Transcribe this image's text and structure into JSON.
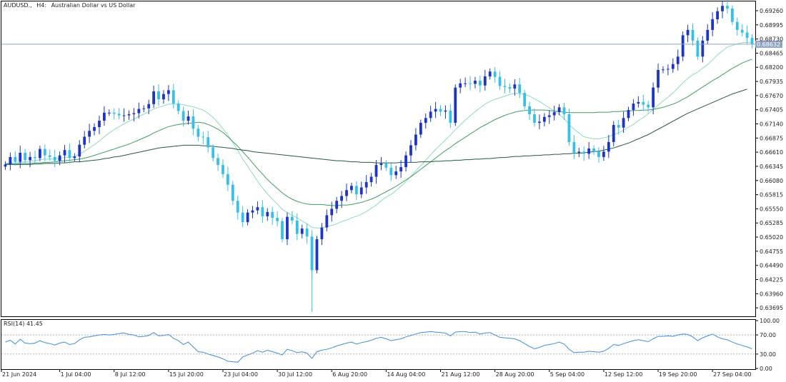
{
  "chart_title": {
    "symbol": "AUDUSD.,",
    "timeframe": "H4:",
    "description": "Australian Dollar vs US Dollar"
  },
  "current_price": {
    "label": "0.68632",
    "value": 0.68632,
    "color": "#8fa4c2"
  },
  "colors": {
    "bull": "#1e34c8",
    "bear": "#35c0e8",
    "ma_fast": "#8fd8c4",
    "ma_mid": "#3f9f5e",
    "ma_slow": "#245c3c",
    "rsi_line": "#3c8fe0",
    "grid_dash": "#b0b0b0",
    "frame": "#000000"
  },
  "chart_data": {
    "type": "line",
    "price_axis": {
      "ylim": [
        0.6355,
        0.6942
      ],
      "ticks": [
        "0.69260",
        "0.68995",
        "0.68730",
        "0.68465",
        "0.68200",
        "0.67935",
        "0.67670",
        "0.67405",
        "0.67140",
        "0.66875",
        "0.66610",
        "0.66345",
        "0.66080",
        "0.65815",
        "0.65550",
        "0.65285",
        "0.65020",
        "0.64755",
        "0.64490",
        "0.64225",
        "0.63960",
        "0.63695"
      ]
    },
    "time_axis": {
      "labels": [
        "21 Jun 2024",
        "1 Jul 04:00",
        "8 Jul 12:00",
        "15 Jul 20:00",
        "23 Jul 04:00",
        "30 Jul 12:00",
        "6 Aug 20:00",
        "14 Aug 04:00",
        "21 Aug 12:00",
        "28 Aug 20:00",
        "5 Sep 04:00",
        "12 Sep 12:00",
        "19 Sep 20:00",
        "27 Sep 04:00"
      ],
      "label_bars": [
        0,
        11,
        22,
        33,
        44,
        55,
        66,
        77,
        88,
        99,
        110,
        121,
        132,
        143
      ]
    },
    "price_series": {
      "name": "AUDUSD., H4",
      "close": [
        0.6638,
        0.6652,
        0.6643,
        0.666,
        0.6646,
        0.6652,
        0.665,
        0.6667,
        0.6655,
        0.6652,
        0.6645,
        0.6655,
        0.6665,
        0.665,
        0.6653,
        0.6675,
        0.669,
        0.6701,
        0.6708,
        0.672,
        0.6735,
        0.6735,
        0.6733,
        0.673,
        0.673,
        0.6732,
        0.6734,
        0.6742,
        0.6743,
        0.6751,
        0.6775,
        0.676,
        0.677,
        0.6777,
        0.6752,
        0.6738,
        0.672,
        0.6728,
        0.6705,
        0.669,
        0.6689,
        0.667,
        0.665,
        0.6637,
        0.662,
        0.66,
        0.657,
        0.6548,
        0.653,
        0.6548,
        0.6552,
        0.6558,
        0.6541,
        0.6549,
        0.6538,
        0.6532,
        0.6498,
        0.654,
        0.6533,
        0.6508,
        0.6518,
        0.6503,
        0.644,
        0.6498,
        0.652,
        0.6543,
        0.6555,
        0.657,
        0.6579,
        0.659,
        0.6598,
        0.6582,
        0.6595,
        0.6605,
        0.6615,
        0.6637,
        0.664,
        0.6632,
        0.6618,
        0.6625,
        0.6633,
        0.6655,
        0.6674,
        0.6694,
        0.6716,
        0.6725,
        0.6737,
        0.6742,
        0.6737,
        0.6739,
        0.6716,
        0.6782,
        0.679,
        0.679,
        0.6789,
        0.6795,
        0.6786,
        0.6803,
        0.6812,
        0.6802,
        0.6785,
        0.6783,
        0.678,
        0.6788,
        0.6772,
        0.6747,
        0.6732,
        0.6716,
        0.6718,
        0.6727,
        0.673,
        0.6736,
        0.6745,
        0.6732,
        0.668,
        0.666,
        0.6662,
        0.6658,
        0.6668,
        0.6662,
        0.6652,
        0.6662,
        0.668,
        0.6712,
        0.6707,
        0.6725,
        0.674,
        0.6752,
        0.6755,
        0.675,
        0.6745,
        0.6782,
        0.6815,
        0.6816,
        0.6817,
        0.6826,
        0.684,
        0.688,
        0.689,
        0.687,
        0.684,
        0.687,
        0.689,
        0.691,
        0.6925,
        0.6935,
        0.693,
        0.6905,
        0.689,
        0.6885,
        0.6875,
        0.6863
      ]
    },
    "moving_averages": [
      {
        "values": [
          0.664,
          0.6641,
          0.6641,
          0.6642,
          0.6643,
          0.6644,
          0.6645,
          0.6647,
          0.6648,
          0.6648,
          0.6649,
          0.665,
          0.6651,
          0.6652,
          0.6653,
          0.6657,
          0.6663,
          0.6669,
          0.6675,
          0.6682,
          0.669,
          0.6697,
          0.6703,
          0.6709,
          0.6714,
          0.6719,
          0.6723,
          0.6728,
          0.6732,
          0.6737,
          0.6742,
          0.6745,
          0.6748,
          0.6751,
          0.6751,
          0.6751,
          0.675,
          0.6748,
          0.6746,
          0.6743,
          0.674,
          0.6734,
          0.6726,
          0.6716,
          0.6705,
          0.6693,
          0.6679,
          0.6664,
          0.6648,
          0.6635,
          0.6621,
          0.6607,
          0.6594,
          0.6583,
          0.6573,
          0.6564,
          0.6554,
          0.6548,
          0.6543,
          0.6538,
          0.6532,
          0.6527,
          0.652,
          0.6519,
          0.6519,
          0.6522,
          0.6524,
          0.6527,
          0.6531,
          0.6534,
          0.6538,
          0.6541,
          0.6545,
          0.655,
          0.6556,
          0.6562,
          0.657,
          0.6577,
          0.6582,
          0.6589,
          0.6597,
          0.6606,
          0.6616,
          0.6626,
          0.6636,
          0.6646,
          0.6656,
          0.6666,
          0.6675,
          0.6684,
          0.6693,
          0.6703,
          0.6712,
          0.6721,
          0.6729,
          0.6737,
          0.6744,
          0.6751,
          0.6756,
          0.676,
          0.6763,
          0.6766,
          0.6769,
          0.6771,
          0.6771,
          0.6769,
          0.6766,
          0.6761,
          0.6756,
          0.675,
          0.6744,
          0.6738,
          0.6732,
          0.6724,
          0.6713,
          0.6704,
          0.6697,
          0.669,
          0.6688,
          0.6686,
          0.6686,
          0.6688,
          0.669,
          0.6694,
          0.6697,
          0.6702,
          0.6708,
          0.6713,
          0.672,
          0.6726,
          0.6733,
          0.6741,
          0.6749,
          0.6757,
          0.6764,
          0.6772,
          0.6781,
          0.6791,
          0.6799,
          0.6806,
          0.6811,
          0.6818,
          0.6825,
          0.6834,
          0.6843,
          0.6851,
          0.6858,
          0.6861,
          0.6864,
          0.6866,
          0.6867,
          0.6866
        ]
      },
      {
        "values": [
          0.6639,
          0.6639,
          0.6639,
          0.664,
          0.664,
          0.664,
          0.6641,
          0.6641,
          0.6642,
          0.6642,
          0.6643,
          0.6644,
          0.6645,
          0.6646,
          0.6647,
          0.6648,
          0.665,
          0.6652,
          0.6655,
          0.6658,
          0.6661,
          0.6664,
          0.6667,
          0.667,
          0.6673,
          0.6676,
          0.668,
          0.6684,
          0.6688,
          0.6692,
          0.6697,
          0.6701,
          0.6705,
          0.6709,
          0.6711,
          0.6713,
          0.6714,
          0.6715,
          0.6716,
          0.6717,
          0.6716,
          0.6713,
          0.6709,
          0.6704,
          0.6698,
          0.669,
          0.6681,
          0.6672,
          0.6662,
          0.6652,
          0.6641,
          0.663,
          0.662,
          0.661,
          0.6601,
          0.6593,
          0.6585,
          0.6578,
          0.6573,
          0.6569,
          0.6566,
          0.6564,
          0.6563,
          0.6563,
          0.6563,
          0.6562,
          0.6561,
          0.6561,
          0.6562,
          0.6562,
          0.6563,
          0.6565,
          0.6567,
          0.657,
          0.6573,
          0.6577,
          0.6582,
          0.6587,
          0.6592,
          0.6597,
          0.6603,
          0.6609,
          0.6615,
          0.6622,
          0.6629,
          0.6636,
          0.6643,
          0.665,
          0.6657,
          0.6664,
          0.667,
          0.6677,
          0.6683,
          0.6689,
          0.6695,
          0.6701,
          0.6707,
          0.6712,
          0.6717,
          0.6722,
          0.6726,
          0.673,
          0.6733,
          0.6736,
          0.6738,
          0.6739,
          0.674,
          0.674,
          0.674,
          0.674,
          0.6739,
          0.6738,
          0.6737,
          0.6736,
          0.6735,
          0.6735,
          0.6735,
          0.6735,
          0.6735,
          0.6735,
          0.6736,
          0.6736,
          0.6736,
          0.6737,
          0.6737,
          0.6738,
          0.6738,
          0.6739,
          0.6739,
          0.674,
          0.674,
          0.6741,
          0.6743,
          0.6745,
          0.6748,
          0.6751,
          0.6755,
          0.676,
          0.6765,
          0.6771,
          0.6777,
          0.6783,
          0.6789,
          0.6795,
          0.68,
          0.6806,
          0.6812,
          0.6818,
          0.6823,
          0.6828,
          0.6832,
          0.6835
        ]
      },
      {
        "values": [
          0.6638,
          0.6638,
          0.6638,
          0.6638,
          0.6638,
          0.6638,
          0.6639,
          0.6639,
          0.664,
          0.664,
          0.664,
          0.6641,
          0.6641,
          0.6642,
          0.6643,
          0.6643,
          0.6644,
          0.6645,
          0.6646,
          0.6647,
          0.6649,
          0.665,
          0.6652,
          0.6653,
          0.6655,
          0.6657,
          0.6659,
          0.6661,
          0.6663,
          0.6665,
          0.6667,
          0.6669,
          0.667,
          0.6671,
          0.6672,
          0.6673,
          0.6674,
          0.6674,
          0.6674,
          0.6674,
          0.6673,
          0.6673,
          0.6672,
          0.6671,
          0.667,
          0.6669,
          0.6668,
          0.6666,
          0.6665,
          0.6664,
          0.6662,
          0.6661,
          0.666,
          0.6659,
          0.6658,
          0.6657,
          0.6656,
          0.6655,
          0.6654,
          0.6653,
          0.6652,
          0.6651,
          0.665,
          0.6649,
          0.6648,
          0.6647,
          0.6646,
          0.6645,
          0.6645,
          0.6644,
          0.6643,
          0.6643,
          0.6642,
          0.6642,
          0.6642,
          0.6641,
          0.6641,
          0.6641,
          0.6641,
          0.6641,
          0.6642,
          0.6642,
          0.6642,
          0.6642,
          0.6643,
          0.6643,
          0.6643,
          0.6644,
          0.6644,
          0.6645,
          0.6645,
          0.6646,
          0.6646,
          0.6647,
          0.6647,
          0.6648,
          0.6648,
          0.6649,
          0.6649,
          0.665,
          0.6651,
          0.6651,
          0.6652,
          0.6653,
          0.6653,
          0.6654,
          0.6654,
          0.6655,
          0.6655,
          0.6656,
          0.6656,
          0.6657,
          0.6657,
          0.6658,
          0.6658,
          0.6659,
          0.6659,
          0.666,
          0.6661,
          0.6662,
          0.6663,
          0.6665,
          0.6667,
          0.6669,
          0.6672,
          0.6675,
          0.6678,
          0.6682,
          0.6686,
          0.669,
          0.6694,
          0.6699,
          0.6704,
          0.6709,
          0.6714,
          0.6719,
          0.6724,
          0.6729,
          0.6734,
          0.6738,
          0.6742,
          0.6746,
          0.675,
          0.6754,
          0.6758,
          0.6762,
          0.6766,
          0.677,
          0.6773,
          0.6776,
          0.6779
        ]
      }
    ],
    "rsi": {
      "label": "RSI(14) 41.45",
      "ylim": [
        0,
        100
      ],
      "levels": [
        30,
        70
      ],
      "ticks": [
        "100.00",
        "70.00",
        "30.00",
        "0.00"
      ],
      "values": [
        55,
        59,
        51,
        61,
        53,
        52,
        53,
        58,
        54,
        52,
        49,
        53,
        55,
        50,
        52,
        60,
        65,
        66,
        68,
        70,
        71,
        70,
        71,
        73,
        74,
        71,
        70,
        66,
        67,
        69,
        75,
        68,
        69,
        71,
        63,
        58,
        50,
        55,
        45,
        35,
        34,
        30,
        27,
        24,
        20,
        15,
        14,
        13,
        24,
        28,
        32,
        37,
        34,
        38,
        35,
        32,
        28,
        40,
        37,
        33,
        35,
        32,
        21,
        35,
        38,
        40,
        43,
        47,
        50,
        53,
        55,
        51,
        54,
        56,
        59,
        63,
        65,
        62,
        58,
        60,
        62,
        66,
        69,
        72,
        75,
        76,
        77,
        76,
        75,
        74,
        68,
        76,
        77,
        77,
        75,
        76,
        72,
        74,
        75,
        70,
        65,
        64,
        63,
        62,
        58,
        52,
        46,
        41,
        44,
        48,
        50,
        52,
        55,
        51,
        40,
        33,
        34,
        34,
        36,
        35,
        34,
        36,
        42,
        50,
        48,
        52,
        55,
        58,
        60,
        58,
        56,
        62,
        67,
        67,
        68,
        67,
        70,
        72,
        71,
        66,
        58,
        64,
        68,
        72,
        66,
        62,
        60,
        55,
        51,
        48,
        45,
        41
      ]
    }
  }
}
